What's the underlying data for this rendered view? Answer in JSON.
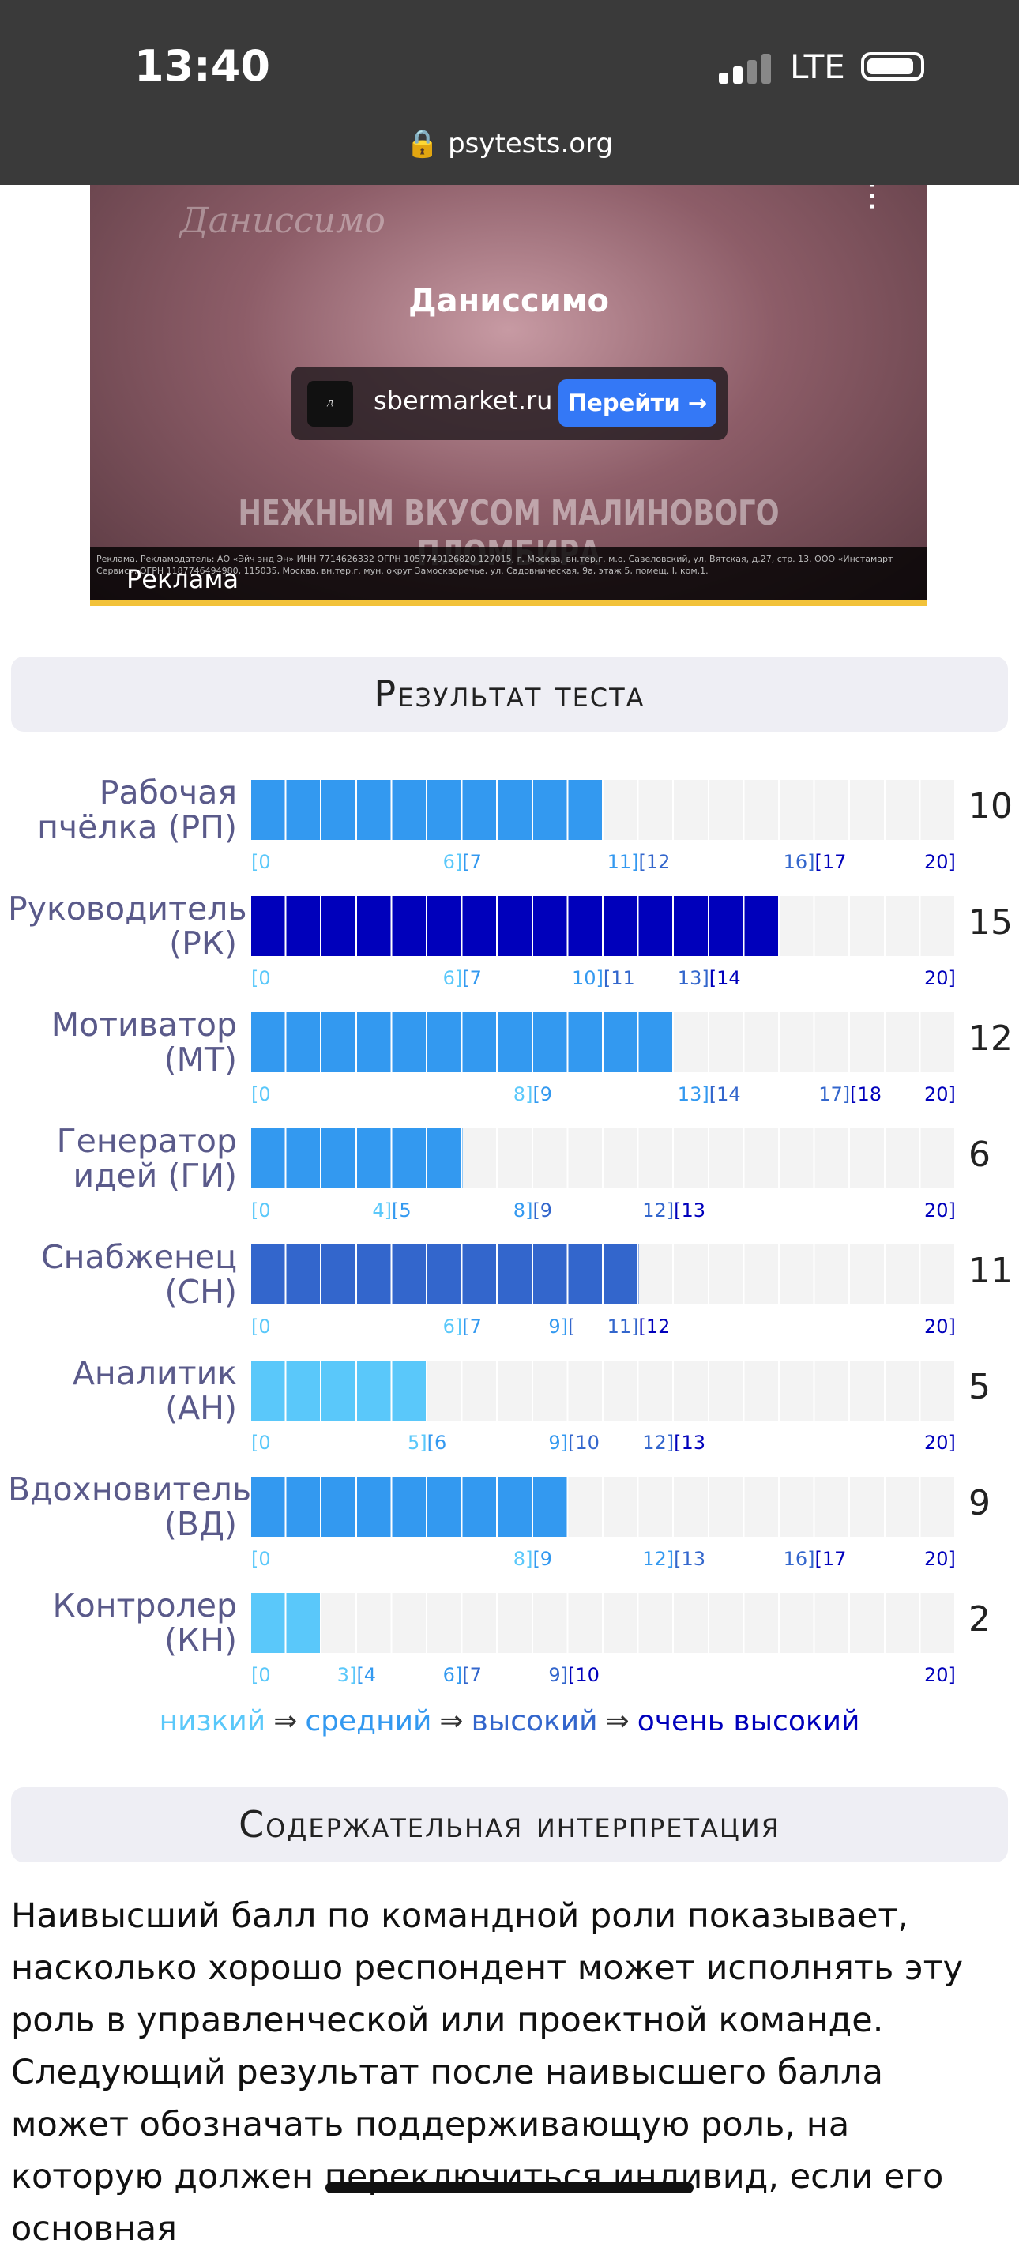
{
  "status_bar": {
    "time": "13:40",
    "network": "LTE",
    "url": "psytests.org"
  },
  "ad": {
    "logo": "Даниссимо",
    "title": "Даниссимо",
    "site": "sbermarket.ru",
    "button": "Перейти →",
    "slogan": "НЕЖНЫМ ВКУСОМ МАЛИНОВОГО ПЛОМБИРА",
    "fine_print": "Реклама. Рекламодатель: АО «Эйч энд Эн» ИНН 7714626332 ОГРН 1057749126820 127015, г. Москва, вн.тер.г. м.о. Савеловский, ул. Вятская, д.27, стр. 13. ООО «Инстамарт Сервис», ОГРН 1187746494980, 115035, Москва, вн.тер.г. мун. округ Замоскворечье, ул. Садовническая, 9а, этаж 5, помещ. I, ком.1.",
    "label": "Реклама"
  },
  "results": {
    "title": "Результат теста",
    "max": 20,
    "levels": [
      {
        "name": "низкий",
        "color": "#5ac8fa"
      },
      {
        "name": "средний",
        "color": "#3399f0"
      },
      {
        "name": "высокий",
        "color": "#3366cc"
      },
      {
        "name": "очень высокий",
        "color": "#0000bb"
      }
    ],
    "separator": "⇒",
    "rows": [
      {
        "label": [
          "Рабочая",
          "пчёлка (РП)"
        ],
        "score": 10,
        "level": 1,
        "ticks": [
          {
            "value": 0,
            "parts": [
              "[0"
            ]
          },
          {
            "value": 6,
            "parts": [
              "6]",
              "[7"
            ]
          },
          {
            "value": 11,
            "parts": [
              "11]",
              "[12"
            ]
          },
          {
            "value": 16,
            "parts": [
              "16]",
              "[17"
            ]
          },
          {
            "value": 20,
            "parts": [
              "20]"
            ]
          }
        ]
      },
      {
        "label": [
          "Руководитель",
          "(РК)"
        ],
        "score": 15,
        "level": 3,
        "ticks": [
          {
            "value": 0,
            "parts": [
              "[0"
            ]
          },
          {
            "value": 6,
            "parts": [
              "6]",
              "[7"
            ]
          },
          {
            "value": 10,
            "parts": [
              "10]",
              "[11"
            ]
          },
          {
            "value": 13,
            "parts": [
              "13]",
              "[14"
            ]
          },
          {
            "value": 20,
            "parts": [
              "20]"
            ]
          }
        ]
      },
      {
        "label": [
          "Мотиватор",
          "(МТ)"
        ],
        "score": 12,
        "level": 1,
        "ticks": [
          {
            "value": 0,
            "parts": [
              "[0"
            ]
          },
          {
            "value": 8,
            "parts": [
              "8]",
              "[9"
            ]
          },
          {
            "value": 13,
            "parts": [
              "13]",
              "[14"
            ]
          },
          {
            "value": 17,
            "parts": [
              "17]",
              "[18"
            ]
          },
          {
            "value": 20,
            "parts": [
              "20]"
            ]
          }
        ]
      },
      {
        "label": [
          "Генератор",
          "идей (ГИ)"
        ],
        "score": 6,
        "level": 1,
        "ticks": [
          {
            "value": 0,
            "parts": [
              "[0"
            ]
          },
          {
            "value": 4,
            "parts": [
              "4]",
              "[5"
            ]
          },
          {
            "value": 8,
            "parts": [
              "8]",
              "[9"
            ]
          },
          {
            "value": 12,
            "parts": [
              "12]",
              "[13"
            ]
          },
          {
            "value": 20,
            "parts": [
              "20]"
            ]
          }
        ]
      },
      {
        "label": [
          "Снабженец",
          "(СН)"
        ],
        "score": 11,
        "level": 2,
        "ticks": [
          {
            "value": 0,
            "parts": [
              "[0"
            ]
          },
          {
            "value": 6,
            "parts": [
              "6]",
              "[7"
            ]
          },
          {
            "value": 9,
            "parts": [
              "9]",
              "["
            ]
          },
          {
            "value": 11,
            "parts": [
              "11]",
              "[12"
            ]
          },
          {
            "value": 20,
            "parts": [
              "20]"
            ]
          }
        ]
      },
      {
        "label": [
          "Аналитик",
          "(АН)"
        ],
        "score": 5,
        "level": 0,
        "ticks": [
          {
            "value": 0,
            "parts": [
              "[0"
            ]
          },
          {
            "value": 5,
            "parts": [
              "5]",
              "[6"
            ]
          },
          {
            "value": 9,
            "parts": [
              "9]",
              "[10"
            ]
          },
          {
            "value": 12,
            "parts": [
              "12]",
              "[13"
            ]
          },
          {
            "value": 20,
            "parts": [
              "20]"
            ]
          }
        ]
      },
      {
        "label": [
          "Вдохновитель",
          "(ВД)"
        ],
        "score": 9,
        "level": 1,
        "ticks": [
          {
            "value": 0,
            "parts": [
              "[0"
            ]
          },
          {
            "value": 8,
            "parts": [
              "8]",
              "[9"
            ]
          },
          {
            "value": 12,
            "parts": [
              "12]",
              "[13"
            ]
          },
          {
            "value": 16,
            "parts": [
              "16]",
              "[17"
            ]
          },
          {
            "value": 20,
            "parts": [
              "20]"
            ]
          }
        ]
      },
      {
        "label": [
          "Контролер",
          "(КН)"
        ],
        "score": 2,
        "level": 0,
        "ticks": [
          {
            "value": 0,
            "parts": [
              "[0"
            ]
          },
          {
            "value": 3,
            "parts": [
              "3]",
              "[4"
            ]
          },
          {
            "value": 6,
            "parts": [
              "6]",
              "[7"
            ]
          },
          {
            "value": 9,
            "parts": [
              "9]",
              "[10"
            ]
          },
          {
            "value": 20,
            "parts": [
              "20]"
            ]
          }
        ]
      }
    ]
  },
  "interpretation": {
    "title": "Содержательная интерпретация",
    "text": "Наивысший балл по командной роли показывает, насколько хорошо респондент может исполнять эту роль в управленческой или проектной команде. Следующий результат после наивысшего балла может обозначать поддерживающую роль, на которую должен переключиться индивид, если его основная"
  }
}
